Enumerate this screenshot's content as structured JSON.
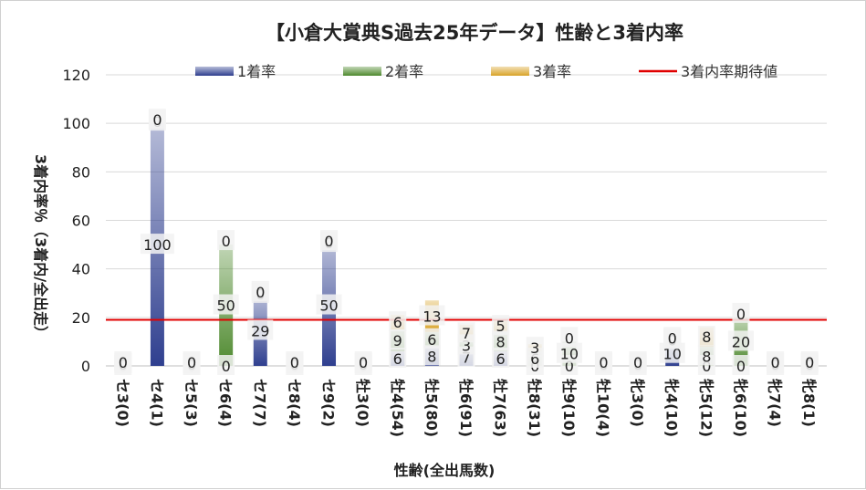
{
  "chart_data": {
    "type": "bar",
    "title": "【小倉大賞典S過去25年データ】性齢と3着内率",
    "xlabel": "性齢(全出馬数)",
    "ylabel": "3着内率％（3着内/全出走）",
    "ylim": [
      0,
      120
    ],
    "yticks": [
      "0",
      "20",
      "40",
      "60",
      "80",
      "100",
      "120"
    ],
    "grid": true,
    "legend_position": "top",
    "categories": [
      "セ3(0)",
      "セ4(1)",
      "セ5(3)",
      "セ6(4)",
      "セ7(7)",
      "セ8(4)",
      "セ9(2)",
      "牡3(0)",
      "牡4(54)",
      "牡5(80)",
      "牡6(91)",
      "牡7(63)",
      "牡8(31)",
      "牡9(10)",
      "牡10(4)",
      "牝3(0)",
      "牝4(10)",
      "牝5(12)",
      "牝6(10)",
      "牝7(4)",
      "牝8(1)"
    ],
    "series": [
      {
        "name": "1着率",
        "color": "#2f3f8f",
        "values": [
          0,
          100,
          0,
          0,
          29,
          0,
          50,
          0,
          6,
          8,
          7,
          6,
          0,
          0,
          0,
          0,
          10,
          0,
          0,
          0,
          0
        ]
      },
      {
        "name": "2着率",
        "color": "#4f8a2f",
        "values": [
          0,
          0,
          0,
          50,
          0,
          0,
          0,
          0,
          9,
          6,
          3,
          8,
          6,
          10,
          0,
          0,
          0,
          8,
          20,
          0,
          0
        ]
      },
      {
        "name": "3着率",
        "color": "#d9a42a",
        "values": [
          0,
          0,
          0,
          0,
          0,
          0,
          0,
          0,
          6,
          13,
          7,
          5,
          3,
          0,
          0,
          0,
          0,
          8,
          0,
          0,
          0
        ]
      }
    ],
    "line": {
      "name": "3着内率期待値",
      "color": "#e00000",
      "value": 19
    }
  }
}
